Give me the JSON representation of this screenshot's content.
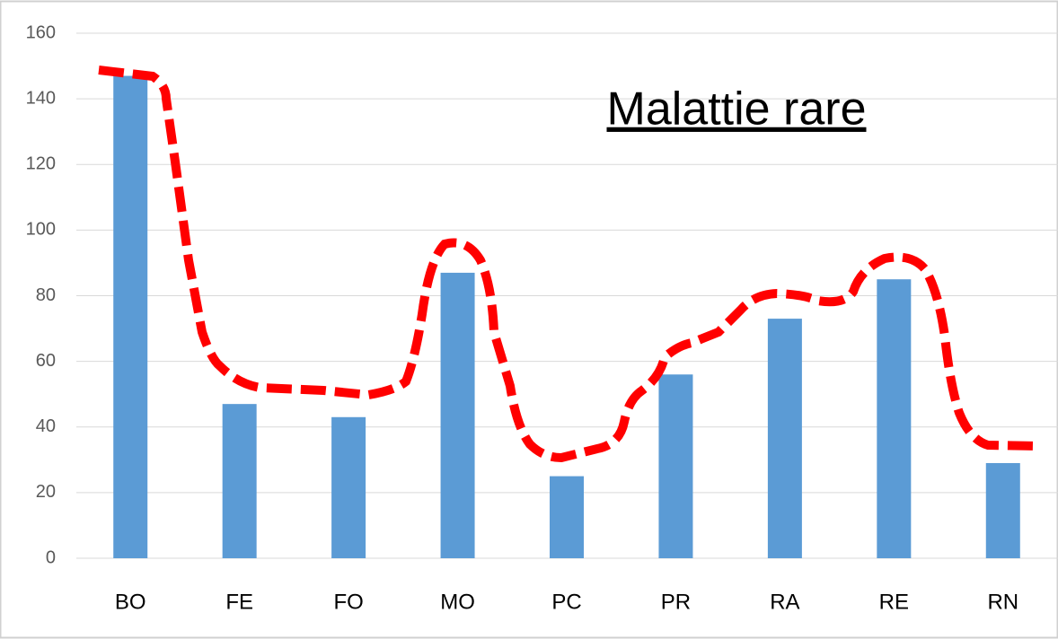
{
  "chart_data": {
    "type": "bar",
    "title": "Malattie rare",
    "categories": [
      "BO",
      "FE",
      "FO",
      "MO",
      "PC",
      "PR",
      "RA",
      "RE",
      "RN"
    ],
    "values": [
      147,
      47,
      43,
      87,
      25,
      56,
      73,
      85,
      29
    ],
    "color": "#5b9bd5",
    "ylim": [
      0,
      160
    ],
    "yticks": [
      0,
      20,
      40,
      60,
      80,
      100,
      120,
      140,
      160
    ],
    "grid": true
  }
}
